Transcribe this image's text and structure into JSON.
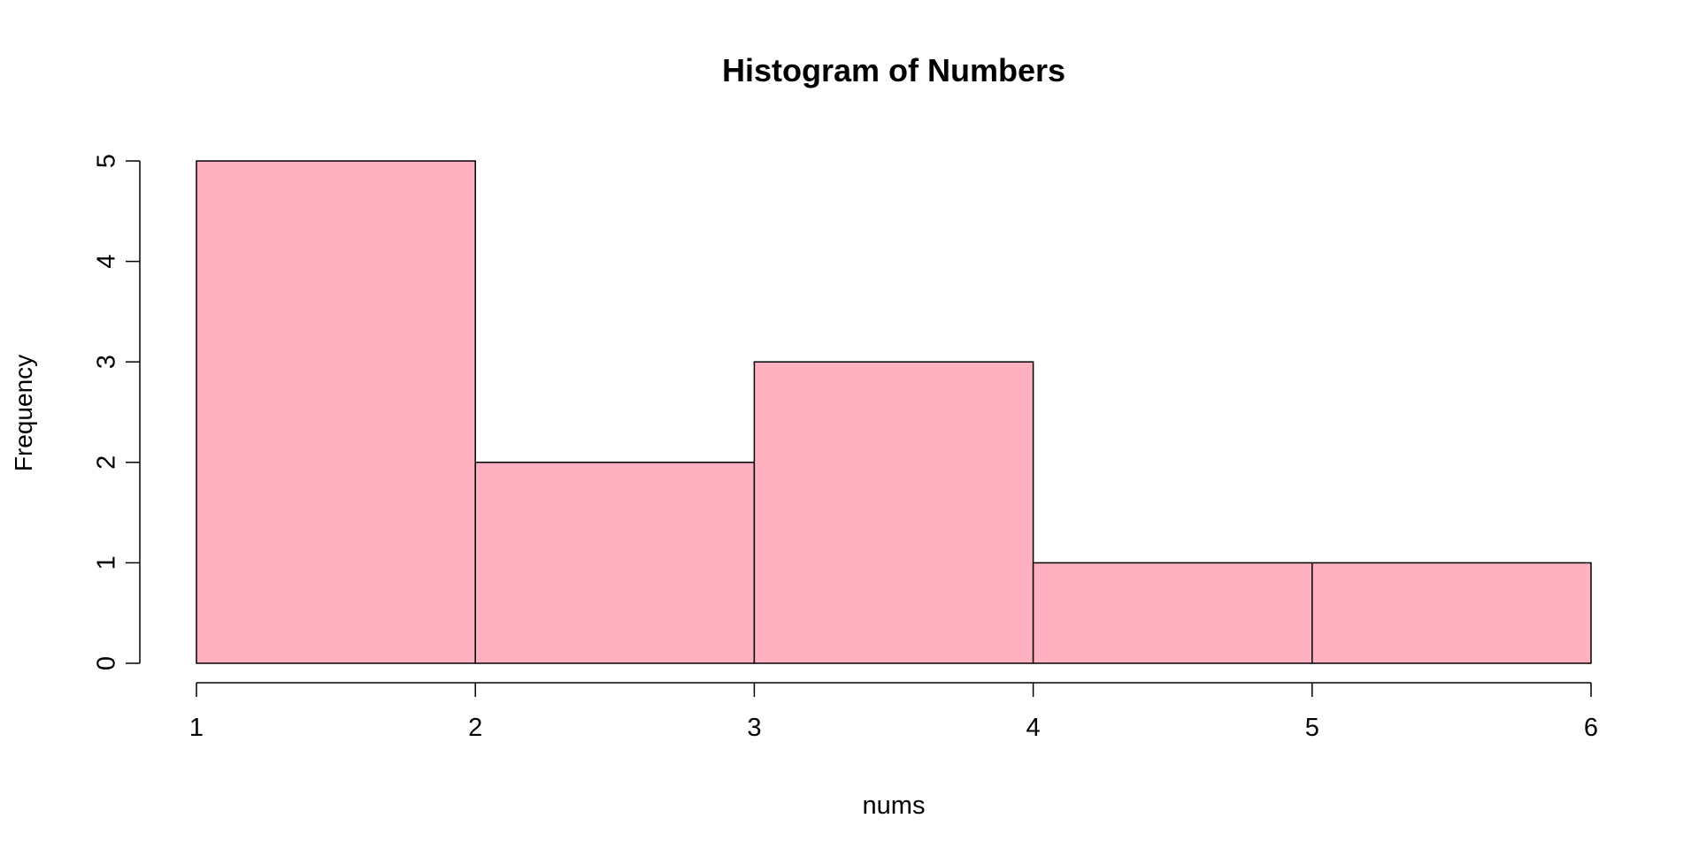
{
  "chart_data": {
    "type": "bar",
    "title": "Histogram of Numbers",
    "xlabel": "nums",
    "ylabel": "Frequency",
    "bins": [
      {
        "start": 1,
        "end": 2,
        "count": 5
      },
      {
        "start": 2,
        "end": 3,
        "count": 2
      },
      {
        "start": 3,
        "end": 4,
        "count": 3
      },
      {
        "start": 4,
        "end": 5,
        "count": 1
      },
      {
        "start": 5,
        "end": 6,
        "count": 1
      }
    ],
    "xlim": [
      1,
      6
    ],
    "ylim": [
      0,
      5
    ],
    "x_ticks": [
      "1",
      "2",
      "3",
      "4",
      "5",
      "6"
    ],
    "y_ticks": [
      "0",
      "1",
      "2",
      "3",
      "4",
      "5"
    ],
    "grid": false,
    "bar_color": "#FFB1C1",
    "edge_color": "#000000"
  }
}
